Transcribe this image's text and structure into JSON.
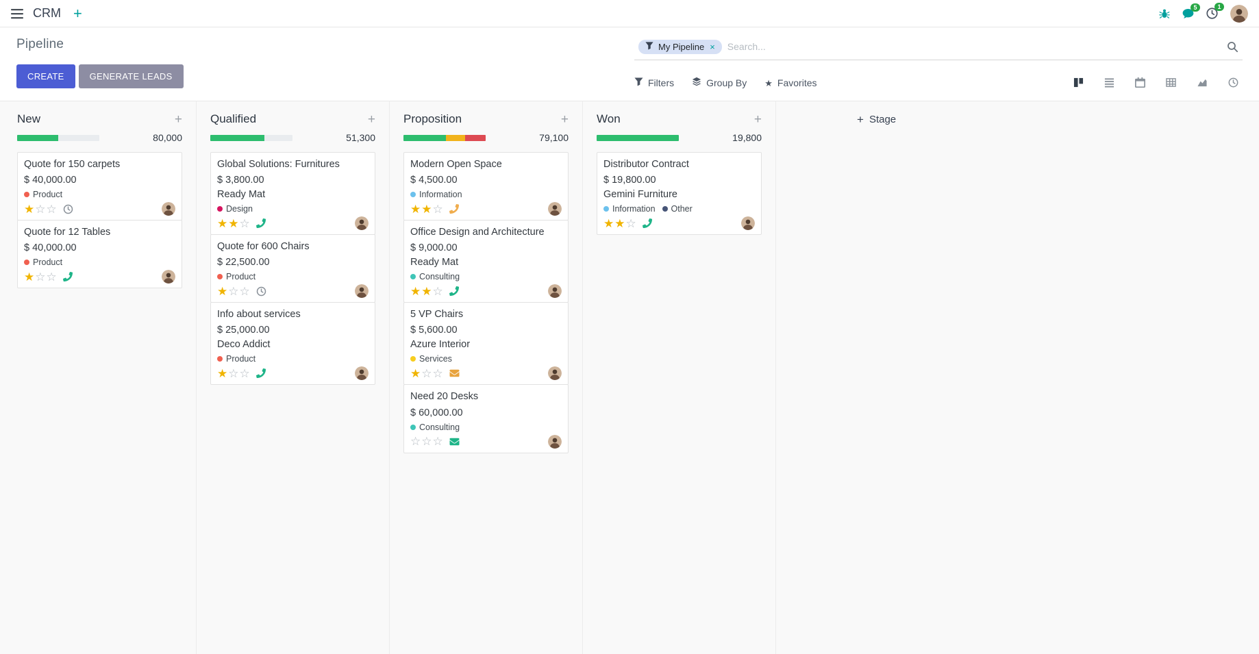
{
  "topbar": {
    "app_name": "CRM",
    "message_badge": "5",
    "activity_badge": "1"
  },
  "control_panel": {
    "title": "Pipeline",
    "create_label": "CREATE",
    "generate_leads_label": "GENERATE LEADS",
    "search_facet": "My Pipeline",
    "search_placeholder": "Search...",
    "search_menus": [
      {
        "label": "Filters",
        "icon": "filter"
      },
      {
        "label": "Group By",
        "icon": "layers"
      },
      {
        "label": "Favorites",
        "icon": "star"
      }
    ],
    "view_switcher": {
      "active": "kanban",
      "views": [
        "kanban",
        "list",
        "calendar",
        "pivot",
        "graph",
        "activity"
      ]
    }
  },
  "board": {
    "add_stage_label": "Stage",
    "columns": [
      {
        "name": "New",
        "amount": "80,000",
        "progress": [
          {
            "color": "#2dbd6e",
            "pct": 50
          }
        ],
        "cards": [
          {
            "title": "Quote for 150 carpets",
            "amount": "$ 40,000.00",
            "partner": "",
            "tags": [
              {
                "label": "Product",
                "color": "#f06050"
              }
            ],
            "stars": 1,
            "activity": {
              "type": "clock",
              "color": "#8a9199"
            }
          },
          {
            "title": "Quote for 12 Tables",
            "amount": "$ 40,000.00",
            "partner": "",
            "tags": [
              {
                "label": "Product",
                "color": "#f06050"
              }
            ],
            "stars": 1,
            "activity": {
              "type": "phone",
              "color": "#1eb488"
            }
          }
        ]
      },
      {
        "name": "Qualified",
        "amount": "51,300",
        "progress": [
          {
            "color": "#2dbd6e",
            "pct": 66
          }
        ],
        "cards": [
          {
            "title": "Global Solutions: Furnitures",
            "amount": "$ 3,800.00",
            "partner": "Ready Mat",
            "tags": [
              {
                "label": "Design",
                "color": "#d6145f"
              }
            ],
            "stars": 2,
            "activity": {
              "type": "phone",
              "color": "#1eb488"
            }
          },
          {
            "title": "Quote for 600 Chairs",
            "amount": "$ 22,500.00",
            "partner": "",
            "tags": [
              {
                "label": "Product",
                "color": "#f06050"
              }
            ],
            "stars": 1,
            "activity": {
              "type": "clock",
              "color": "#8a9199"
            }
          },
          {
            "title": "Info about services",
            "amount": "$ 25,000.00",
            "partner": "Deco Addict",
            "tags": [
              {
                "label": "Product",
                "color": "#f06050"
              }
            ],
            "stars": 1,
            "activity": {
              "type": "phone",
              "color": "#1eb488"
            }
          }
        ]
      },
      {
        "name": "Proposition",
        "amount": "79,100",
        "progress": [
          {
            "color": "#2dbd6e",
            "pct": 52
          },
          {
            "color": "#f1b31c",
            "pct": 23
          },
          {
            "color": "#dd4a52",
            "pct": 25
          }
        ],
        "cards": [
          {
            "title": "Modern Open Space",
            "amount": "$ 4,500.00",
            "partner": "",
            "tags": [
              {
                "label": "Information",
                "color": "#6cc1ed"
              }
            ],
            "stars": 2,
            "activity": {
              "type": "phone",
              "color": "#f0ad4e"
            }
          },
          {
            "title": "Office Design and Architecture",
            "amount": "$ 9,000.00",
            "partner": "Ready Mat",
            "tags": [
              {
                "label": "Consulting",
                "color": "#3fc5b7"
              }
            ],
            "stars": 2,
            "activity": {
              "type": "phone",
              "color": "#1eb488"
            }
          },
          {
            "title": "5 VP Chairs",
            "amount": "$ 5,600.00",
            "partner": "Azure Interior",
            "tags": [
              {
                "label": "Services",
                "color": "#f7cd1f"
              }
            ],
            "stars": 1,
            "activity": {
              "type": "envelope",
              "color": "#e8a33d"
            }
          },
          {
            "title": "Need 20 Desks",
            "amount": "$ 60,000.00",
            "partner": "",
            "tags": [
              {
                "label": "Consulting",
                "color": "#3fc5b7"
              }
            ],
            "stars": 0,
            "activity": {
              "type": "envelope",
              "color": "#1eb488"
            }
          }
        ]
      },
      {
        "name": "Won",
        "amount": "19,800",
        "progress": [
          {
            "color": "#2dbd6e",
            "pct": 100
          }
        ],
        "cards": [
          {
            "title": "Distributor Contract",
            "amount": "$ 19,800.00",
            "partner": "Gemini Furniture",
            "tags": [
              {
                "label": "Information",
                "color": "#6cc1ed"
              },
              {
                "label": "Other",
                "color": "#475577"
              }
            ],
            "stars": 2,
            "activity": {
              "type": "phone",
              "color": "#1eb488"
            }
          }
        ]
      }
    ]
  }
}
